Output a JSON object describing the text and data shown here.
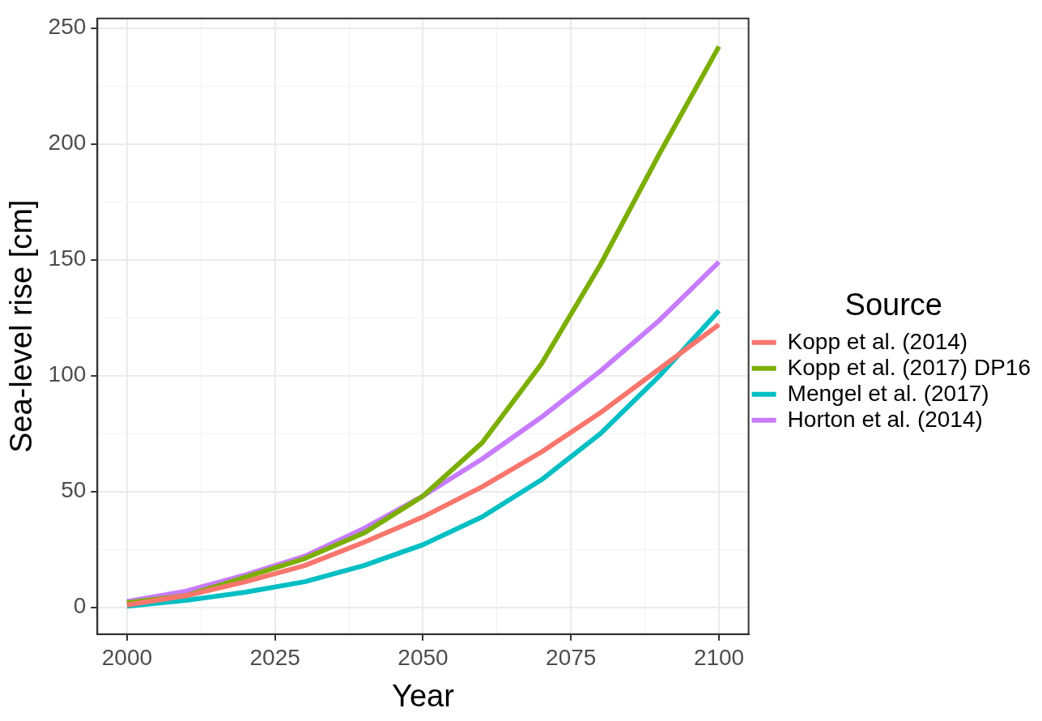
{
  "chart_data": {
    "type": "line",
    "xlabel": "Year",
    "ylabel": "Sea-level rise [cm]",
    "legend_title": "Source",
    "x": [
      2000,
      2010,
      2020,
      2030,
      2040,
      2050,
      2060,
      2070,
      2080,
      2090,
      2100
    ],
    "series": [
      {
        "name": "Kopp et al. (2014)",
        "color": "#f8766d",
        "values": [
          1,
          5,
          11,
          18,
          28,
          39,
          52,
          67,
          84,
          103,
          122
        ]
      },
      {
        "name": "Kopp et al. (2017) DP16",
        "color": "#7cae00",
        "values": [
          2,
          5,
          13,
          21,
          32,
          48,
          71,
          105,
          148,
          196,
          242
        ]
      },
      {
        "name": "Mengel et al. (2017)",
        "color": "#00bfc4",
        "values": [
          0.5,
          3,
          6.5,
          11,
          18,
          27,
          39,
          55,
          75,
          100,
          128
        ]
      },
      {
        "name": "Horton et al. (2014)",
        "color": "#c77cff",
        "values": [
          2.5,
          7,
          14,
          22,
          34,
          48,
          64,
          82,
          102,
          124,
          149
        ]
      }
    ],
    "xlim": [
      1995,
      2105
    ],
    "xticks": [
      2000,
      {
        "value": 2012.5,
        "label": null
      },
      2025,
      {
        "value": 2037.5,
        "label": null
      },
      2050,
      {
        "value": 2062.5,
        "label": null
      },
      2075,
      {
        "value": 2087.5,
        "label": null
      },
      2100
    ],
    "ylim": [
      -11.6,
      254.1
    ],
    "yticks": [
      0,
      {
        "value": 25,
        "label": null
      },
      50,
      {
        "value": 75,
        "label": null
      },
      100,
      {
        "value": 125,
        "label": null
      },
      150,
      {
        "value": 175,
        "label": null
      },
      200,
      {
        "value": 225,
        "label": null
      },
      250
    ],
    "grid": true,
    "legend": "right",
    "marker": "none",
    "line_style": "solid"
  }
}
